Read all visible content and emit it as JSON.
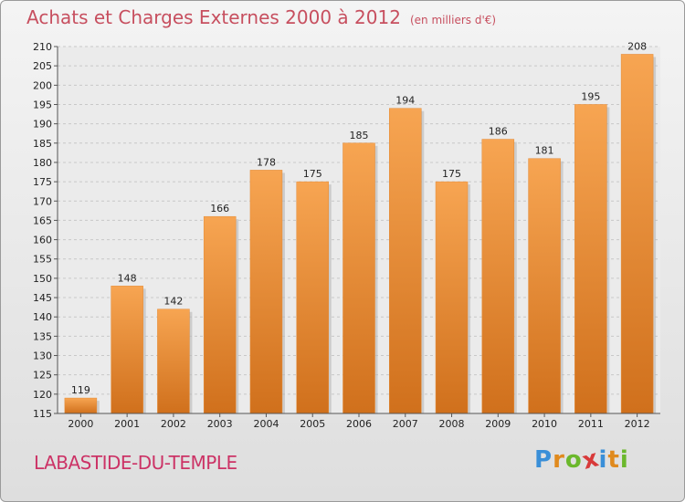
{
  "title": "Achats et Charges Externes 2000 à 2012",
  "subtitle": "(en milliers d'€)",
  "town": "LABASTIDE-DU-TEMPLE",
  "logo": {
    "letters": [
      "P",
      "r",
      "o",
      "x",
      "i",
      "t",
      "i"
    ],
    "colors": [
      "#3a8fd8",
      "#e08a1e",
      "#6bb82c",
      "#d83a3a",
      "#3a8fd8",
      "#e08a1e",
      "#6bb82c"
    ]
  },
  "colors": {
    "bar": "#f29a45",
    "bar_dark": "#d2701c",
    "title": "#c74f5f",
    "town": "#cc3366"
  },
  "chart_data": {
    "type": "bar",
    "categories": [
      "2000",
      "2001",
      "2002",
      "2003",
      "2004",
      "2005",
      "2006",
      "2007",
      "2008",
      "2009",
      "2010",
      "2011",
      "2012"
    ],
    "values": [
      119,
      148,
      142,
      166,
      178,
      175,
      185,
      194,
      175,
      186,
      181,
      195,
      208
    ],
    "ylim": [
      115,
      210
    ],
    "yticks": [
      115,
      120,
      125,
      130,
      135,
      140,
      145,
      150,
      155,
      160,
      165,
      170,
      175,
      180,
      185,
      190,
      195,
      200,
      205,
      210
    ],
    "grid": true
  }
}
